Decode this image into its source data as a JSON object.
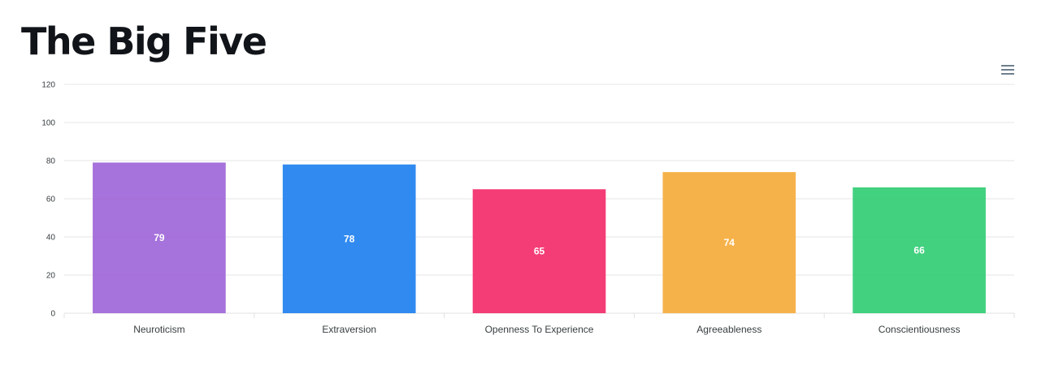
{
  "header": {
    "title": "The Big Five"
  },
  "toolbar": {
    "menu_icon": "hamburger-menu-icon"
  },
  "chart_data": {
    "type": "bar",
    "title": "The Big Five",
    "categories": [
      "Neuroticism",
      "Extraversion",
      "Openness To Experience",
      "Agreeableness",
      "Conscientiousness"
    ],
    "values": [
      79,
      78,
      65,
      74,
      66
    ],
    "colors": [
      "#a16ad9",
      "#2684ef",
      "#f3326f",
      "#f5ae40",
      "#38cf78"
    ],
    "ylim": [
      0,
      120
    ],
    "yticks": [
      0,
      20,
      40,
      60,
      80,
      100,
      120
    ],
    "xlabel": "",
    "ylabel": "",
    "grid": true,
    "data_labels": true,
    "legend": "none"
  }
}
